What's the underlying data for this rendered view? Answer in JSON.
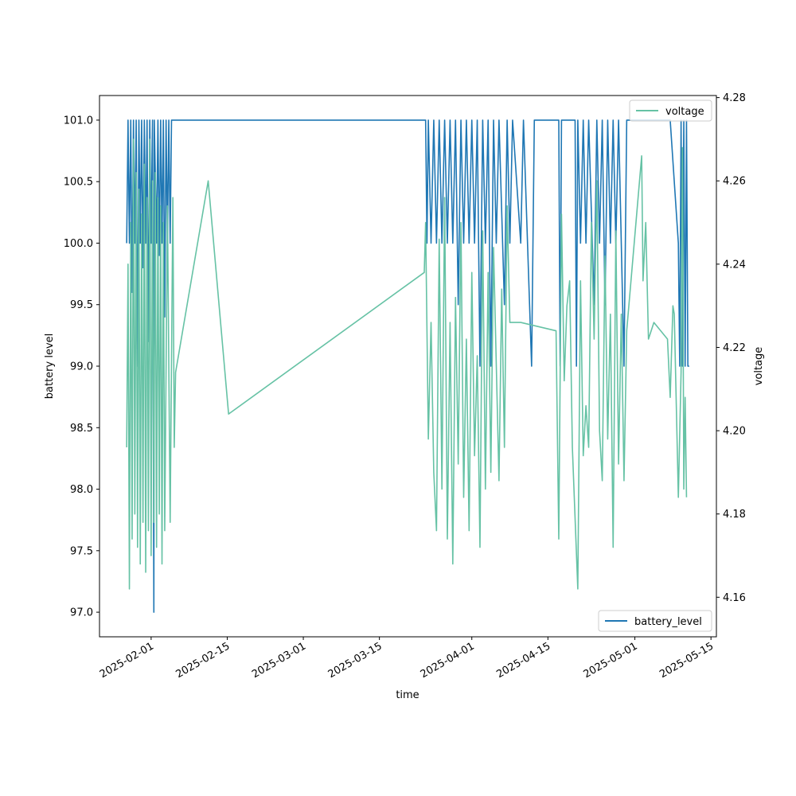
{
  "chart_data": {
    "type": "line",
    "title": "",
    "xlabel": "time",
    "x_tick_labels": [
      "2025-02-01",
      "2025-02-15",
      "2025-03-01",
      "2025-03-15",
      "2025-04-01",
      "2025-04-15",
      "2025-05-01",
      "2025-05-15"
    ],
    "x_ticks": [
      "2025-02-01",
      "2025-02-15",
      "2025-03-01",
      "2025-03-15",
      "2025-04-01",
      "2025-04-15",
      "2025-05-01",
      "2025-05-15"
    ],
    "xlim": [
      "2025-01-22T12:00",
      "2025-05-16T00:00"
    ],
    "left_axis": {
      "label": "battery level",
      "ylim": [
        96.8,
        101.2
      ],
      "ticks": [
        97.0,
        97.5,
        98.0,
        98.5,
        99.0,
        99.5,
        100.0,
        100.5,
        101.0
      ],
      "tick_labels": [
        "97.0",
        "97.5",
        "98.0",
        "98.5",
        "99.0",
        "99.5",
        "100.0",
        "100.5",
        "101.0"
      ]
    },
    "right_axis": {
      "label": "voltage",
      "ylim": [
        4.1505,
        4.2805
      ],
      "ticks": [
        4.16,
        4.18,
        4.2,
        4.22,
        4.24,
        4.26,
        4.28
      ],
      "tick_labels": [
        "4.16",
        "4.18",
        "4.20",
        "4.22",
        "4.24",
        "4.26",
        "4.28"
      ]
    },
    "series": [
      {
        "name": "battery_level",
        "axis": "left",
        "color": "#1f77b4",
        "legend_position": "lower right",
        "points": [
          [
            "2025-01-27T12:00",
            100
          ],
          [
            "2025-01-27T18:00",
            101
          ],
          [
            "2025-01-28T00:00",
            100
          ],
          [
            "2025-01-28T06:00",
            101
          ],
          [
            "2025-01-28T12:00",
            99.6
          ],
          [
            "2025-01-28T18:00",
            101
          ],
          [
            "2025-01-29T00:00",
            100
          ],
          [
            "2025-01-29T06:00",
            101
          ],
          [
            "2025-01-29T12:00",
            99.0
          ],
          [
            "2025-01-29T18:00",
            101
          ],
          [
            "2025-01-30T00:00",
            100
          ],
          [
            "2025-01-30T06:00",
            101
          ],
          [
            "2025-01-30T12:00",
            99.8
          ],
          [
            "2025-01-30T18:00",
            101
          ],
          [
            "2025-01-31T00:00",
            100
          ],
          [
            "2025-01-31T06:00",
            101
          ],
          [
            "2025-01-31T12:00",
            99.2
          ],
          [
            "2025-01-31T18:00",
            101
          ],
          [
            "2025-02-01T00:00",
            100
          ],
          [
            "2025-02-01T06:00",
            101
          ],
          [
            "2025-02-01T12:00",
            97.0
          ],
          [
            "2025-02-01T14:00",
            101
          ],
          [
            "2025-02-02T00:00",
            100
          ],
          [
            "2025-02-02T06:00",
            101
          ],
          [
            "2025-02-02T12:00",
            99.9
          ],
          [
            "2025-02-02T18:00",
            101
          ],
          [
            "2025-02-03T00:00",
            100
          ],
          [
            "2025-02-03T06:00",
            101
          ],
          [
            "2025-02-03T12:00",
            99.4
          ],
          [
            "2025-02-03T18:00",
            101
          ],
          [
            "2025-02-04T00:00",
            100
          ],
          [
            "2025-02-04T06:00",
            101
          ],
          [
            "2025-02-04T12:00",
            100
          ],
          [
            "2025-02-04T18:00",
            101
          ],
          [
            "2025-03-23T12:00",
            101
          ],
          [
            "2025-03-23T18:00",
            100
          ],
          [
            "2025-03-24T00:00",
            101
          ],
          [
            "2025-03-24T12:00",
            100
          ],
          [
            "2025-03-25T00:00",
            101
          ],
          [
            "2025-03-25T12:00",
            100
          ],
          [
            "2025-03-26T00:00",
            101
          ],
          [
            "2025-03-26T12:00",
            100
          ],
          [
            "2025-03-27T00:00",
            101
          ],
          [
            "2025-03-27T12:00",
            100
          ],
          [
            "2025-03-28T00:00",
            101
          ],
          [
            "2025-03-28T12:00",
            100
          ],
          [
            "2025-03-29T00:00",
            101
          ],
          [
            "2025-03-29T12:00",
            99.5
          ],
          [
            "2025-03-30T00:00",
            101
          ],
          [
            "2025-03-30T12:00",
            100
          ],
          [
            "2025-03-31T00:00",
            101
          ],
          [
            "2025-03-31T12:00",
            100
          ],
          [
            "2025-04-01T00:00",
            101
          ],
          [
            "2025-04-01T12:00",
            100
          ],
          [
            "2025-04-02T00:00",
            101
          ],
          [
            "2025-04-02T12:00",
            99.0
          ],
          [
            "2025-04-03T00:00",
            101
          ],
          [
            "2025-04-03T12:00",
            100
          ],
          [
            "2025-04-04T00:00",
            101
          ],
          [
            "2025-04-04T12:00",
            99.0
          ],
          [
            "2025-04-05T00:00",
            101
          ],
          [
            "2025-04-05T12:00",
            100
          ],
          [
            "2025-04-06T00:00",
            101
          ],
          [
            "2025-04-07T00:00",
            99.5
          ],
          [
            "2025-04-07T12:00",
            101
          ],
          [
            "2025-04-08T00:00",
            100
          ],
          [
            "2025-04-08T12:00",
            101
          ],
          [
            "2025-04-10T00:00",
            100
          ],
          [
            "2025-04-10T12:00",
            101
          ],
          [
            "2025-04-12T00:00",
            99.0
          ],
          [
            "2025-04-12T12:00",
            101
          ],
          [
            "2025-04-17T00:00",
            101
          ],
          [
            "2025-04-17T06:00",
            99.0
          ],
          [
            "2025-04-17T12:00",
            101
          ],
          [
            "2025-04-20T00:00",
            101
          ],
          [
            "2025-04-20T06:00",
            99.0
          ],
          [
            "2025-04-20T12:00",
            101
          ],
          [
            "2025-04-21T00:00",
            100
          ],
          [
            "2025-04-21T12:00",
            101
          ],
          [
            "2025-04-22T00:00",
            100
          ],
          [
            "2025-04-22T12:00",
            101
          ],
          [
            "2025-04-23T12:00",
            99.5
          ],
          [
            "2025-04-24T00:00",
            101
          ],
          [
            "2025-04-24T12:00",
            100
          ],
          [
            "2025-04-25T00:00",
            101
          ],
          [
            "2025-04-25T12:00",
            99.5
          ],
          [
            "2025-04-26T00:00",
            101
          ],
          [
            "2025-04-26T12:00",
            100
          ],
          [
            "2025-04-27T00:00",
            101
          ],
          [
            "2025-04-27T12:00",
            100
          ],
          [
            "2025-04-28T00:00",
            101
          ],
          [
            "2025-04-29T00:00",
            99.0
          ],
          [
            "2025-04-29T12:00",
            101
          ],
          [
            "2025-05-07T12:00",
            101
          ],
          [
            "2025-05-09T00:00",
            100
          ],
          [
            "2025-05-09T06:00",
            99.0
          ],
          [
            "2025-05-09T12:00",
            101
          ],
          [
            "2025-05-09T18:00",
            99.0
          ],
          [
            "2025-05-10T00:00",
            101
          ],
          [
            "2025-05-10T06:00",
            99.0
          ],
          [
            "2025-05-10T12:00",
            101
          ],
          [
            "2025-05-10T18:00",
            99.0
          ],
          [
            "2025-05-11T00:00",
            99.0
          ]
        ]
      },
      {
        "name": "voltage",
        "axis": "right",
        "color": "#66c2a5",
        "legend_position": "upper right",
        "points": [
          [
            "2025-01-27T12:00",
            4.196
          ],
          [
            "2025-01-27T18:00",
            4.24
          ],
          [
            "2025-01-28T00:00",
            4.162
          ],
          [
            "2025-01-28T06:00",
            4.25
          ],
          [
            "2025-01-28T12:00",
            4.174
          ],
          [
            "2025-01-28T18:00",
            4.27
          ],
          [
            "2025-01-29T00:00",
            4.18
          ],
          [
            "2025-01-29T06:00",
            4.262
          ],
          [
            "2025-01-29T12:00",
            4.172
          ],
          [
            "2025-01-29T18:00",
            4.258
          ],
          [
            "2025-01-30T00:00",
            4.168
          ],
          [
            "2025-01-30T06:00",
            4.252
          ],
          [
            "2025-01-30T12:00",
            4.178
          ],
          [
            "2025-01-30T18:00",
            4.264
          ],
          [
            "2025-01-31T00:00",
            4.166
          ],
          [
            "2025-01-31T06:00",
            4.256
          ],
          [
            "2025-01-31T12:00",
            4.176
          ],
          [
            "2025-01-31T18:00",
            4.27
          ],
          [
            "2025-02-01T00:00",
            4.17
          ],
          [
            "2025-02-01T06:00",
            4.26
          ],
          [
            "2025-02-01T12:00",
            4.178
          ],
          [
            "2025-02-01T18:00",
            4.262
          ],
          [
            "2025-02-02T00:00",
            4.172
          ],
          [
            "2025-02-02T06:00",
            4.256
          ],
          [
            "2025-02-02T12:00",
            4.18
          ],
          [
            "2025-02-02T18:00",
            4.254
          ],
          [
            "2025-02-03T00:00",
            4.168
          ],
          [
            "2025-02-03T06:00",
            4.25
          ],
          [
            "2025-02-03T12:00",
            4.176
          ],
          [
            "2025-02-04T00:00",
            4.254
          ],
          [
            "2025-02-04T12:00",
            4.178
          ],
          [
            "2025-02-05T00:00",
            4.256
          ],
          [
            "2025-02-05T06:00",
            4.196
          ],
          [
            "2025-02-05T12:00",
            4.214
          ],
          [
            "2025-02-11T12:00",
            4.26
          ],
          [
            "2025-02-15T06:00",
            4.204
          ],
          [
            "2025-03-23T06:00",
            4.238
          ],
          [
            "2025-03-23T12:00",
            4.25
          ],
          [
            "2025-03-24T00:00",
            4.198
          ],
          [
            "2025-03-24T12:00",
            4.226
          ],
          [
            "2025-03-25T00:00",
            4.19
          ],
          [
            "2025-03-25T12:00",
            4.176
          ],
          [
            "2025-03-26T00:00",
            4.246
          ],
          [
            "2025-03-26T12:00",
            4.186
          ],
          [
            "2025-03-27T00:00",
            4.256
          ],
          [
            "2025-03-27T12:00",
            4.174
          ],
          [
            "2025-03-28T00:00",
            4.226
          ],
          [
            "2025-03-28T12:00",
            4.168
          ],
          [
            "2025-03-29T00:00",
            4.232
          ],
          [
            "2025-03-29T12:00",
            4.192
          ],
          [
            "2025-03-30T00:00",
            4.25
          ],
          [
            "2025-03-30T12:00",
            4.184
          ],
          [
            "2025-03-31T00:00",
            4.222
          ],
          [
            "2025-03-31T12:00",
            4.176
          ],
          [
            "2025-04-01T00:00",
            4.238
          ],
          [
            "2025-04-01T12:00",
            4.194
          ],
          [
            "2025-04-02T00:00",
            4.218
          ],
          [
            "2025-04-02T12:00",
            4.172
          ],
          [
            "2025-04-03T00:00",
            4.248
          ],
          [
            "2025-04-03T12:00",
            4.186
          ],
          [
            "2025-04-04T00:00",
            4.238
          ],
          [
            "2025-04-04T12:00",
            4.19
          ],
          [
            "2025-04-05T00:00",
            4.244
          ],
          [
            "2025-04-06T00:00",
            4.188
          ],
          [
            "2025-04-06T12:00",
            4.234
          ],
          [
            "2025-04-07T00:00",
            4.196
          ],
          [
            "2025-04-07T12:00",
            4.254
          ],
          [
            "2025-04-08T00:00",
            4.226
          ],
          [
            "2025-04-10T00:00",
            4.226
          ],
          [
            "2025-04-16T12:00",
            4.224
          ],
          [
            "2025-04-17T00:00",
            4.174
          ],
          [
            "2025-04-17T12:00",
            4.252
          ],
          [
            "2025-04-18T00:00",
            4.212
          ],
          [
            "2025-04-18T12:00",
            4.23
          ],
          [
            "2025-04-19T00:00",
            4.236
          ],
          [
            "2025-04-19T12:00",
            4.196
          ],
          [
            "2025-04-20T12:00",
            4.162
          ],
          [
            "2025-04-21T00:00",
            4.236
          ],
          [
            "2025-04-21T12:00",
            4.194
          ],
          [
            "2025-04-22T00:00",
            4.206
          ],
          [
            "2025-04-22T12:00",
            4.196
          ],
          [
            "2025-04-23T00:00",
            4.25
          ],
          [
            "2025-04-23T12:00",
            4.222
          ],
          [
            "2025-04-24T00:00",
            4.26
          ],
          [
            "2025-04-24T12:00",
            4.2
          ],
          [
            "2025-04-25T00:00",
            4.188
          ],
          [
            "2025-04-25T12:00",
            4.242
          ],
          [
            "2025-04-26T00:00",
            4.198
          ],
          [
            "2025-04-26T12:00",
            4.228
          ],
          [
            "2025-04-27T00:00",
            4.172
          ],
          [
            "2025-04-27T12:00",
            4.248
          ],
          [
            "2025-04-28T00:00",
            4.192
          ],
          [
            "2025-04-28T12:00",
            4.228
          ],
          [
            "2025-04-29T00:00",
            4.188
          ],
          [
            "2025-04-29T12:00",
            4.224
          ],
          [
            "2025-05-02T06:00",
            4.266
          ],
          [
            "2025-05-02T12:00",
            4.236
          ],
          [
            "2025-05-03T00:00",
            4.25
          ],
          [
            "2025-05-03T12:00",
            4.222
          ],
          [
            "2025-05-04T12:00",
            4.226
          ],
          [
            "2025-05-07T00:00",
            4.222
          ],
          [
            "2025-05-07T12:00",
            4.208
          ],
          [
            "2025-05-08T00:00",
            4.23
          ],
          [
            "2025-05-08T06:00",
            4.228
          ],
          [
            "2025-05-09T00:00",
            4.184
          ],
          [
            "2025-05-09T12:00",
            4.214
          ],
          [
            "2025-05-09T18:00",
            4.268
          ],
          [
            "2025-05-10T00:00",
            4.186
          ],
          [
            "2025-05-10T06:00",
            4.208
          ],
          [
            "2025-05-10T12:00",
            4.184
          ]
        ]
      }
    ],
    "legends": [
      {
        "label": "battery_level",
        "position": "lower right"
      },
      {
        "label": "voltage",
        "position": "upper right"
      }
    ],
    "grid": false
  }
}
